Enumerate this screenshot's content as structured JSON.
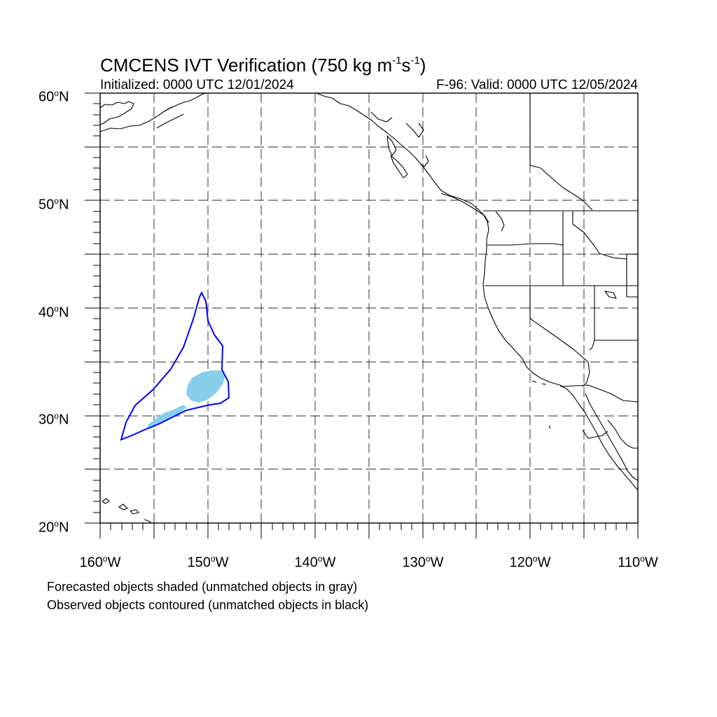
{
  "map": {
    "title_main": "CMCENS IVT Verification (750 kg m",
    "title_exp1": "-1",
    "title_mid": "s",
    "title_exp2": "-1",
    "title_end": ")",
    "initialized": "Initialized: 0000 UTC 12/01/2024",
    "valid": "F-96: Valid: 0000 UTC 12/05/2024",
    "lat_labels": [
      "60",
      "50",
      "40",
      "30",
      "20"
    ],
    "lat_suffix": "N",
    "lon_labels": [
      "160",
      "150",
      "140",
      "130",
      "120",
      "110"
    ],
    "lon_suffix": "W",
    "extent": {
      "lon_min": -160,
      "lon_max": -110,
      "lat_min": 20,
      "lat_max": 60
    },
    "colors": {
      "forecast_object": "#87ceeb",
      "observed_contour": "#0000ff",
      "coastline": "#000000",
      "grid": "#555555"
    }
  },
  "legend": {
    "forecast_note": "Forecasted objects shaded (unmatched objects in gray)",
    "observed_note": "Observed objects contoured (unmatched objects in black)"
  }
}
